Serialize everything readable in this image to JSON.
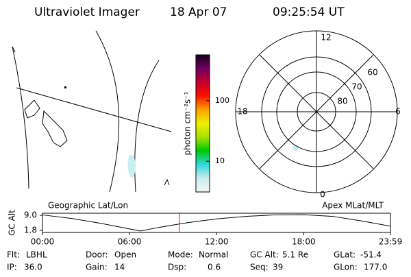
{
  "header": {
    "title": "Ultraviolet Imager",
    "date": "18 Apr 07",
    "time": "09:25:54 UT"
  },
  "colorbar": {
    "label": "photon cm⁻²s⁻¹",
    "scale": "log",
    "lim": [
      3.1,
      575
    ],
    "ticks": [
      10,
      100
    ],
    "colors": [
      "#f4f4f4",
      "#c8eeee",
      "#30d8d8",
      "#00c800",
      "#a8e000",
      "#f0f000",
      "#ffa000",
      "#ff1000",
      "#c00030",
      "#700060",
      "#100018"
    ]
  },
  "polar": {
    "mlt_labels": [
      "12",
      "6",
      "0",
      "18"
    ],
    "lat_labels": [
      60,
      70,
      80
    ]
  },
  "chart_data": {
    "type": "line",
    "ylabel": "GC Alt",
    "left_title": "Geographic Lat/Lon",
    "right_title": "Apex MLat/MLT",
    "x": [
      0,
      2,
      4,
      6,
      6.75,
      8,
      10,
      12,
      14,
      16,
      18,
      20,
      22,
      23.98
    ],
    "series": [
      {
        "color": "#000000",
        "values": [
          9.2,
          7.5,
          5.2,
          2.5,
          1.5,
          3.2,
          5.5,
          7.3,
          8.5,
          9.2,
          9.3,
          8.5,
          6.3,
          3.8
        ]
      }
    ],
    "marker_x": 9.4317,
    "marker_color": "#e00000",
    "xlim": [
      0,
      23.98
    ],
    "ylim": [
      0.8,
      10
    ],
    "xticks": [
      {
        "value": 0,
        "label": "00:00"
      },
      {
        "value": 6,
        "label": "06:00"
      },
      {
        "value": 12,
        "label": "12:00"
      },
      {
        "value": 18,
        "label": "18:00"
      },
      {
        "value": 23.98,
        "label": "23:59"
      }
    ],
    "yticks": [
      {
        "value": 9,
        "label": "9.0"
      },
      1.8
    ]
  },
  "footer": {
    "rows": [
      [
        [
          "Flt:",
          "LBHL"
        ],
        [
          "Door:",
          "Open"
        ],
        [
          "Mode:",
          "Normal"
        ],
        [
          "GC Alt:",
          "5.1 Re"
        ],
        [
          "GLat:",
          "-51.4"
        ]
      ],
      [
        [
          "IP:",
          "36.0"
        ],
        [
          "Gain:",
          "14"
        ],
        [
          "Dsp:",
          "0.6"
        ],
        [
          "Seq:",
          "39"
        ],
        [
          "GLon:",
          "177.0"
        ]
      ]
    ]
  }
}
